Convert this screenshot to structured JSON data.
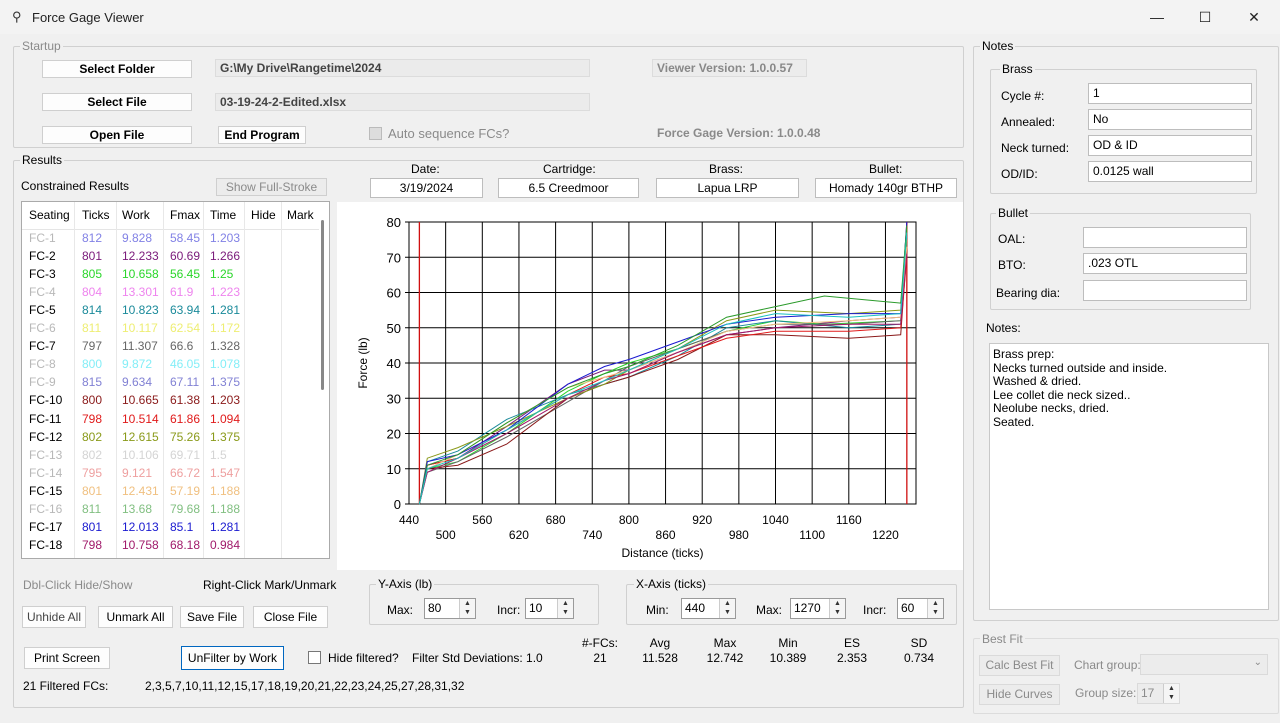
{
  "window": {
    "title": "Force Gage Viewer",
    "minimize": "—",
    "maximize": "☐",
    "close": "✕"
  },
  "startup": {
    "group_label": "Startup",
    "select_folder": "Select Folder",
    "folder_path": "G:\\My Drive\\Rangetime\\2024",
    "select_file": "Select File",
    "file_name": "03-19-24-2-Edited.xlsx",
    "open_file": "Open File",
    "end_program": "End Program",
    "auto_sequence": "Auto sequence FCs?",
    "viewer_version": "Viewer Version: 1.0.0.57",
    "gage_version": "Force Gage Version: 1.0.0.48"
  },
  "results": {
    "group_label": "Results",
    "constrained_label": "Constrained Results",
    "show_full_stroke": "Show Full-Stroke",
    "columns": [
      "Seating",
      "Ticks",
      "Work",
      "Fmax",
      "Time",
      "Hide",
      "Mark"
    ],
    "rows": [
      {
        "name": "FC-1",
        "ticks": "812",
        "work": "9.828",
        "fmax": "58.45",
        "time": "1.203",
        "color": "#1a1ad0",
        "hidden": true
      },
      {
        "name": "FC-2",
        "ticks": "801",
        "work": "12.233",
        "fmax": "60.69",
        "time": "1.266",
        "color": "#7a1a7a",
        "hidden": false
      },
      {
        "name": "FC-3",
        "ticks": "805",
        "work": "10.658",
        "fmax": "56.45",
        "time": "1.25",
        "color": "#2bd62b",
        "hidden": false
      },
      {
        "name": "FC-4",
        "ticks": "804",
        "work": "13.301",
        "fmax": "61.9",
        "time": "1.223",
        "color": "#e020e0",
        "hidden": true
      },
      {
        "name": "FC-5",
        "ticks": "814",
        "work": "10.823",
        "fmax": "63.94",
        "time": "1.281",
        "color": "#1a8a9a",
        "hidden": false
      },
      {
        "name": "FC-6",
        "ticks": "811",
        "work": "10.117",
        "fmax": "62.54",
        "time": "1.172",
        "color": "#e0e000",
        "hidden": true
      },
      {
        "name": "FC-7",
        "ticks": "797",
        "work": "11.307",
        "fmax": "66.6",
        "time": "1.328",
        "color": "#666666",
        "hidden": false
      },
      {
        "name": "FC-8",
        "ticks": "800",
        "work": "9.872",
        "fmax": "46.05",
        "time": "1.078",
        "color": "#20e0f0",
        "hidden": true
      },
      {
        "name": "FC-9",
        "ticks": "815",
        "work": "9.634",
        "fmax": "67.11",
        "time": "1.375",
        "color": "#1a1ab0",
        "hidden": true
      },
      {
        "name": "FC-10",
        "ticks": "800",
        "work": "10.665",
        "fmax": "61.38",
        "time": "1.203",
        "color": "#8a1a1a",
        "hidden": false
      },
      {
        "name": "FC-11",
        "ticks": "798",
        "work": "10.514",
        "fmax": "61.86",
        "time": "1.094",
        "color": "#e01a1a",
        "hidden": false
      },
      {
        "name": "FC-12",
        "ticks": "802",
        "work": "12.615",
        "fmax": "75.26",
        "time": "1.375",
        "color": "#8a9a1a",
        "hidden": false
      },
      {
        "name": "FC-13",
        "ticks": "802",
        "work": "10.106",
        "fmax": "69.71",
        "time": "1.5",
        "color": "#b0b0b0",
        "hidden": true
      },
      {
        "name": "FC-14",
        "ticks": "795",
        "work": "9.121",
        "fmax": "66.72",
        "time": "1.547",
        "color": "#e05050",
        "hidden": true
      },
      {
        "name": "FC-15",
        "ticks": "801",
        "work": "12.431",
        "fmax": "57.19",
        "time": "1.188",
        "color": "#f0c080",
        "hidden": false
      },
      {
        "name": "FC-16",
        "ticks": "811",
        "work": "13.68",
        "fmax": "79.68",
        "time": "1.188",
        "color": "#1a8a1a",
        "hidden": true
      },
      {
        "name": "FC-17",
        "ticks": "801",
        "work": "12.013",
        "fmax": "85.1",
        "time": "1.281",
        "color": "#1a1ad0",
        "hidden": false
      },
      {
        "name": "FC-18",
        "ticks": "798",
        "work": "10.758",
        "fmax": "68.18",
        "time": "0.984",
        "color": "#a01a6a",
        "hidden": false
      }
    ],
    "dbl_click_hint": "Dbl-Click Hide/Show",
    "right_click_hint": "Right-Click Mark/Unmark",
    "unhide_all": "Unhide All",
    "unmark_all": "Unmark All",
    "save_file": "Save File",
    "close_file": "Close File",
    "print_screen": "Print Screen",
    "unfilter_by_work": "UnFilter by Work",
    "hide_filtered": "Hide filtered?",
    "filter_std": "Filter Std Deviations: 1.0",
    "filtered_label": "21 Filtered FCs:",
    "filtered_list": "2,3,5,7,10,11,12,15,17,18,19,20,21,22,23,24,25,27,28,31,32"
  },
  "info": {
    "date_label": "Date:",
    "date": "3/19/2024",
    "cartridge_label": "Cartridge:",
    "cartridge": "6.5 Creedmoor",
    "brass_label": "Brass:",
    "brass": "Lapua LRP",
    "bullet_label": "Bullet:",
    "bullet": "Homady 140gr BTHP"
  },
  "chart_data": {
    "type": "line",
    "xlabel": "Distance (ticks)",
    "ylabel": "Force (lb)",
    "xlim": [
      440,
      1270
    ],
    "ylim": [
      0,
      80
    ],
    "x_ticks_top": [
      "440",
      "560",
      "680",
      "800",
      "920",
      "1040",
      "1160"
    ],
    "x_ticks_bottom": [
      "500",
      "620",
      "740",
      "860",
      "980",
      "1100",
      "1220"
    ],
    "y_ticks": [
      "0",
      "10",
      "20",
      "30",
      "40",
      "50",
      "60",
      "70",
      "80"
    ],
    "markers_x": [
      457,
      1255
    ],
    "series": [
      {
        "color": "#7a1a7a",
        "points": [
          [
            457,
            0
          ],
          [
            470,
            11
          ],
          [
            520,
            13
          ],
          [
            600,
            22
          ],
          [
            700,
            34
          ],
          [
            760,
            38
          ],
          [
            800,
            38
          ],
          [
            880,
            43
          ],
          [
            960,
            48
          ],
          [
            1040,
            50
          ],
          [
            1160,
            52
          ],
          [
            1245,
            53
          ],
          [
            1255,
            80
          ]
        ]
      },
      {
        "color": "#2bd62b",
        "points": [
          [
            457,
            0
          ],
          [
            470,
            10
          ],
          [
            520,
            12
          ],
          [
            600,
            20
          ],
          [
            700,
            32
          ],
          [
            760,
            37
          ],
          [
            800,
            40
          ],
          [
            880,
            44
          ],
          [
            960,
            49
          ],
          [
            1040,
            52
          ],
          [
            1120,
            51
          ],
          [
            1245,
            52
          ],
          [
            1255,
            78
          ]
        ]
      },
      {
        "color": "#1a8a9a",
        "points": [
          [
            457,
            0
          ],
          [
            470,
            12
          ],
          [
            520,
            15
          ],
          [
            600,
            24
          ],
          [
            700,
            31
          ],
          [
            760,
            34
          ],
          [
            800,
            36
          ],
          [
            880,
            42
          ],
          [
            960,
            50
          ],
          [
            1040,
            52
          ],
          [
            1160,
            50
          ],
          [
            1245,
            51
          ],
          [
            1255,
            76
          ]
        ]
      },
      {
        "color": "#666666",
        "points": [
          [
            457,
            0
          ],
          [
            470,
            9
          ],
          [
            520,
            12
          ],
          [
            600,
            19
          ],
          [
            700,
            29
          ],
          [
            760,
            35
          ],
          [
            800,
            39
          ],
          [
            880,
            44
          ],
          [
            960,
            49
          ],
          [
            1040,
            51
          ],
          [
            1160,
            51
          ],
          [
            1245,
            52
          ],
          [
            1255,
            74
          ]
        ]
      },
      {
        "color": "#8a1a1a",
        "points": [
          [
            457,
            0
          ],
          [
            470,
            10
          ],
          [
            520,
            11
          ],
          [
            600,
            17
          ],
          [
            700,
            30
          ],
          [
            760,
            34
          ],
          [
            800,
            36
          ],
          [
            880,
            41
          ],
          [
            960,
            48
          ],
          [
            1040,
            48
          ],
          [
            1160,
            47
          ],
          [
            1245,
            48
          ],
          [
            1255,
            72
          ]
        ]
      },
      {
        "color": "#e01a1a",
        "points": [
          [
            457,
            0
          ],
          [
            470,
            11
          ],
          [
            520,
            13
          ],
          [
            600,
            21
          ],
          [
            700,
            31
          ],
          [
            760,
            36
          ],
          [
            800,
            37
          ],
          [
            880,
            42
          ],
          [
            960,
            47
          ],
          [
            1040,
            49
          ],
          [
            1160,
            49
          ],
          [
            1245,
            50
          ],
          [
            1255,
            70
          ]
        ]
      },
      {
        "color": "#8a9a1a",
        "points": [
          [
            457,
            0
          ],
          [
            470,
            13
          ],
          [
            520,
            16
          ],
          [
            600,
            22
          ],
          [
            700,
            30
          ],
          [
            760,
            34
          ],
          [
            800,
            38
          ],
          [
            880,
            44
          ],
          [
            960,
            52
          ],
          [
            1040,
            55
          ],
          [
            1160,
            54
          ],
          [
            1245,
            55
          ],
          [
            1255,
            75
          ]
        ]
      },
      {
        "color": "#f0c080",
        "points": [
          [
            457,
            0
          ],
          [
            470,
            10
          ],
          [
            520,
            14
          ],
          [
            600,
            23
          ],
          [
            700,
            33
          ],
          [
            760,
            36
          ],
          [
            800,
            38
          ],
          [
            880,
            43
          ],
          [
            960,
            49
          ],
          [
            1040,
            51
          ],
          [
            1160,
            52
          ],
          [
            1245,
            53
          ],
          [
            1255,
            73
          ]
        ]
      },
      {
        "color": "#1a1ad0",
        "points": [
          [
            457,
            0
          ],
          [
            470,
            12
          ],
          [
            520,
            14
          ],
          [
            600,
            21
          ],
          [
            700,
            34
          ],
          [
            760,
            39
          ],
          [
            800,
            41
          ],
          [
            880,
            46
          ],
          [
            960,
            51
          ],
          [
            1040,
            53
          ],
          [
            1160,
            54
          ],
          [
            1245,
            54
          ],
          [
            1255,
            80
          ]
        ]
      },
      {
        "color": "#a01a6a",
        "points": [
          [
            457,
            0
          ],
          [
            470,
            9
          ],
          [
            520,
            13
          ],
          [
            600,
            20
          ],
          [
            700,
            30
          ],
          [
            760,
            35
          ],
          [
            800,
            37
          ],
          [
            880,
            43
          ],
          [
            960,
            48
          ],
          [
            1040,
            50
          ],
          [
            1160,
            51
          ],
          [
            1245,
            51
          ],
          [
            1255,
            71
          ]
        ]
      },
      {
        "color": "#2a9a2a",
        "points": [
          [
            457,
            0
          ],
          [
            470,
            11
          ],
          [
            520,
            14
          ],
          [
            600,
            23
          ],
          [
            700,
            33
          ],
          [
            760,
            37
          ],
          [
            800,
            39
          ],
          [
            880,
            45
          ],
          [
            960,
            53
          ],
          [
            1040,
            56
          ],
          [
            1120,
            59
          ],
          [
            1245,
            57
          ],
          [
            1255,
            79
          ]
        ]
      },
      {
        "color": "#1ac0c0",
        "points": [
          [
            457,
            0
          ],
          [
            470,
            10
          ],
          [
            520,
            13
          ],
          [
            600,
            21
          ],
          [
            700,
            31
          ],
          [
            760,
            35
          ],
          [
            800,
            38
          ],
          [
            880,
            44
          ],
          [
            960,
            51
          ],
          [
            1040,
            54
          ],
          [
            1160,
            53
          ],
          [
            1245,
            54
          ],
          [
            1255,
            77
          ]
        ]
      }
    ]
  },
  "y_axis": {
    "group_label": "Y-Axis (lb)",
    "max_label": "Max:",
    "max": "80",
    "incr_label": "Incr:",
    "incr": "10"
  },
  "x_axis": {
    "group_label": "X-Axis (ticks)",
    "min_label": "Min:",
    "min": "440",
    "max_label": "Max:",
    "max": "1270",
    "incr_label": "Incr:",
    "incr": "60"
  },
  "stats": {
    "headers": [
      "#-FCs:",
      "Avg",
      "Max",
      "Min",
      "ES",
      "SD"
    ],
    "values": [
      "21",
      "11.528",
      "12.742",
      "10.389",
      "2.353",
      "0.734"
    ]
  },
  "notes": {
    "group_label": "Notes",
    "brass_label": "Brass",
    "cycle_label": "Cycle #:",
    "cycle": "1",
    "annealed_label": "Annealed:",
    "annealed": "No",
    "neck_label": "Neck turned:",
    "neck": "OD & ID",
    "odid_label": "OD/ID:",
    "odid": "0.0125 wall",
    "bullet_label": "Bullet",
    "oal_label": "OAL:",
    "oal": "",
    "bto_label": "BTO:",
    "bto": ".023 OTL",
    "bearing_label": "Bearing dia:",
    "bearing": "",
    "notes_label": "Notes:",
    "notes_lines": [
      "Brass prep:",
      "Necks turned outside and inside.",
      "Washed & dried.",
      "Lee collet die neck sized..",
      "Neolube necks, dried.",
      "Seated."
    ]
  },
  "bestfit": {
    "group_label": "Best Fit",
    "calc": "Calc Best Fit",
    "chart_group": "Chart group:",
    "hide_curves": "Hide Curves",
    "group_size_label": "Group size:",
    "group_size": "17"
  }
}
